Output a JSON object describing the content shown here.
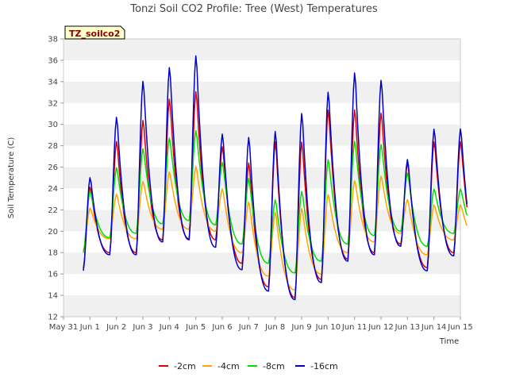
{
  "chart_data": {
    "type": "line",
    "title": "Tonzi Soil CO2 Profile: Tree (West) Temperatures",
    "xlabel": "Time",
    "ylabel": "Soil Temperature (C)",
    "badge": "TZ_soilco2",
    "xlim": [
      0,
      15
    ],
    "ylim": [
      12,
      38
    ],
    "x_ticks": [
      "May 31",
      "Jun 1",
      "Jun 2",
      "Jun 3",
      "Jun 4",
      "Jun 5",
      "Jun 6",
      "Jun 7",
      "Jun 8",
      "Jun 9",
      "Jun 10",
      "Jun 11",
      "Jun 12",
      "Jun 13",
      "Jun 14",
      "Jun 15"
    ],
    "y_ticks": [
      12,
      14,
      16,
      18,
      20,
      22,
      24,
      26,
      28,
      30,
      32,
      34,
      36,
      38
    ],
    "grid": "alternating horizontal bands",
    "legend_position": "bottom-center",
    "series": [
      {
        "name": "-2cm",
        "color": "#dd0000",
        "daily_min": [
          16.5,
          18.0,
          18.0,
          19.2,
          19.3,
          19.2,
          17.0,
          14.8,
          13.8,
          15.5,
          17.4,
          18.0,
          18.8,
          16.6,
          18.0
        ],
        "daily_max": [
          24.2,
          28.5,
          30.5,
          32.5,
          33.2,
          28.0,
          26.5,
          28.5,
          28.5,
          31.5,
          31.5,
          31.2,
          26.5,
          28.5
        ]
      },
      {
        "name": "-4cm",
        "color": "#ffa500",
        "daily_min": [
          18.2,
          19.3,
          19.3,
          20.2,
          20.2,
          20.0,
          18.0,
          15.8,
          14.5,
          16.0,
          18.0,
          19.0,
          19.8,
          17.8,
          19.2
        ],
        "daily_max": [
          22.2,
          23.5,
          24.7,
          25.6,
          26.1,
          24.0,
          22.8,
          21.8,
          22.2,
          23.5,
          24.8,
          25.2,
          23.0,
          22.5
        ]
      },
      {
        "name": "-8cm",
        "color": "#00dd00",
        "daily_min": [
          18.0,
          19.4,
          19.8,
          20.7,
          21.0,
          20.6,
          18.8,
          17.0,
          16.1,
          17.2,
          18.8,
          19.6,
          20.0,
          18.6,
          19.8
        ],
        "daily_max": [
          23.8,
          26.0,
          27.8,
          28.8,
          29.5,
          26.5,
          25.0,
          23.0,
          23.8,
          26.8,
          28.5,
          28.2,
          25.5,
          24.0
        ]
      },
      {
        "name": "-16cm",
        "color": "#0000cc",
        "daily_min": [
          16.3,
          17.8,
          17.8,
          19.0,
          19.2,
          18.5,
          16.4,
          14.4,
          13.6,
          15.2,
          17.2,
          17.8,
          18.6,
          16.3,
          17.7
        ],
        "daily_max": [
          25.1,
          30.8,
          34.2,
          35.5,
          36.6,
          29.2,
          28.9,
          29.5,
          31.2,
          33.2,
          35.0,
          34.3,
          26.8,
          29.7
        ]
      }
    ]
  }
}
